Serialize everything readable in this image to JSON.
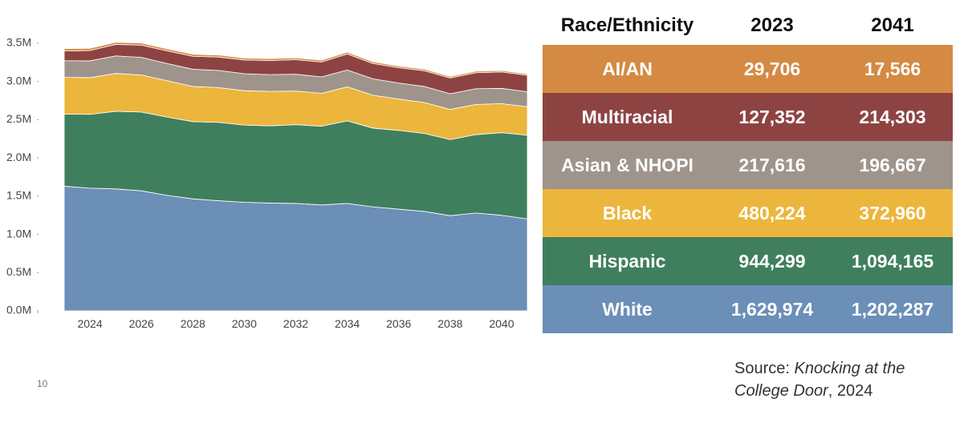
{
  "chart_data": {
    "type": "area",
    "stacked": true,
    "x": [
      2023,
      2024,
      2025,
      2026,
      2027,
      2028,
      2029,
      2030,
      2031,
      2032,
      2033,
      2034,
      2035,
      2036,
      2037,
      2038,
      2039,
      2040,
      2041
    ],
    "ylim": [
      0,
      3500000
    ],
    "y_ticks": [
      {
        "value": 0,
        "label": "0.0M"
      },
      {
        "value": 500000,
        "label": "0.5M"
      },
      {
        "value": 1000000,
        "label": "1.0M"
      },
      {
        "value": 1500000,
        "label": "1.5M"
      },
      {
        "value": 2000000,
        "label": "2.0M"
      },
      {
        "value": 2500000,
        "label": "2.5M"
      },
      {
        "value": 3000000,
        "label": "3.0M"
      },
      {
        "value": 3500000,
        "label": "3.5M"
      }
    ],
    "x_ticks": [
      {
        "value": 2024,
        "label": "2024"
      },
      {
        "value": 2026,
        "label": "2026"
      },
      {
        "value": 2028,
        "label": "2028"
      },
      {
        "value": 2030,
        "label": "2030"
      },
      {
        "value": 2032,
        "label": "2032"
      },
      {
        "value": 2034,
        "label": "2034"
      },
      {
        "value": 2036,
        "label": "2036"
      },
      {
        "value": 2038,
        "label": "2038"
      },
      {
        "value": 2040,
        "label": "2040"
      }
    ],
    "series": [
      {
        "name": "White",
        "color": "#6b8fb7",
        "values": [
          1629974,
          1605000,
          1595000,
          1570000,
          1510000,
          1465000,
          1440000,
          1420000,
          1410000,
          1405000,
          1385000,
          1405000,
          1360000,
          1330000,
          1300000,
          1245000,
          1280000,
          1250000,
          1202287
        ]
      },
      {
        "name": "Hispanic",
        "color": "#3f7f5e",
        "values": [
          944299,
          965000,
          1015000,
          1030000,
          1025000,
          1010000,
          1025000,
          1010000,
          1010000,
          1030000,
          1030000,
          1080000,
          1030000,
          1030000,
          1020000,
          995000,
          1025000,
          1080000,
          1094165
        ]
      },
      {
        "name": "Black",
        "color": "#ecb63c",
        "values": [
          480224,
          480000,
          495000,
          485000,
          475000,
          460000,
          455000,
          450000,
          450000,
          440000,
          430000,
          445000,
          430000,
          410000,
          405000,
          395000,
          395000,
          380000,
          372960
        ]
      },
      {
        "name": "Asian & NHOPI",
        "color": "#9e948c",
        "values": [
          217616,
          220000,
          230000,
          230000,
          225000,
          225000,
          225000,
          222000,
          220000,
          220000,
          215000,
          220000,
          215000,
          210000,
          210000,
          205000,
          205000,
          200000,
          196667
        ]
      },
      {
        "name": "Multiracial",
        "color": "#8e4343",
        "values": [
          127352,
          135000,
          150000,
          160000,
          165000,
          170000,
          175000,
          180000,
          185000,
          190000,
          195000,
          210000,
          200000,
          200000,
          205000,
          205000,
          210000,
          215000,
          214303
        ]
      },
      {
        "name": "AI/AN",
        "color": "#d48a43",
        "values": [
          29706,
          29000,
          28000,
          27500,
          27000,
          26000,
          25500,
          25000,
          24500,
          24000,
          23500,
          23000,
          22500,
          22000,
          21000,
          20500,
          19500,
          18500,
          17566
        ]
      }
    ]
  },
  "page_number": "10",
  "table": {
    "headers": [
      "Race/Ethnicity",
      "2023",
      "2041"
    ],
    "rows": [
      {
        "group": "AI/AN",
        "y2023": "29,706",
        "y2041": "17,566",
        "color": "#d48a43"
      },
      {
        "group": "Multiracial",
        "y2023": "127,352",
        "y2041": "214,303",
        "color": "#8e4343"
      },
      {
        "group": "Asian & NHOPI",
        "y2023": "217,616",
        "y2041": "196,667",
        "color": "#9e948c"
      },
      {
        "group": "Black",
        "y2023": "480,224",
        "y2041": "372,960",
        "color": "#ecb63c"
      },
      {
        "group": "Hispanic",
        "y2023": "944,299",
        "y2041": "1,094,165",
        "color": "#3f7f5e"
      },
      {
        "group": "White",
        "y2023": "1,629,974",
        "y2041": "1,202,287",
        "color": "#6b8fb7"
      }
    ]
  },
  "source": {
    "prefix": "Source: ",
    "title": "Knocking at the College Door",
    "suffix": ", 2024"
  }
}
